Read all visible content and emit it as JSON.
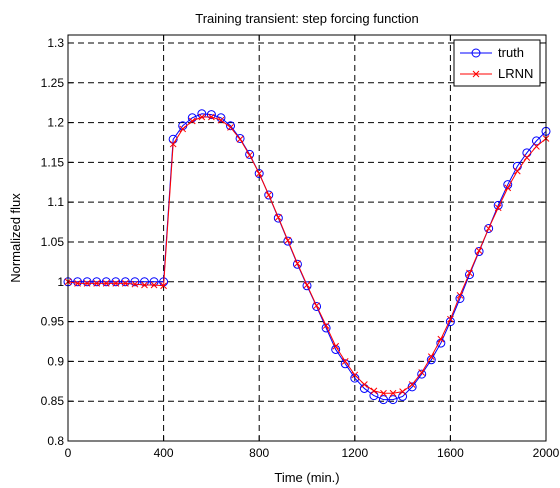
{
  "chart_data": {
    "type": "line",
    "title": "Training transient: step forcing function",
    "xlabel": "Time (min.)",
    "ylabel": "Normalized flux",
    "xlim": [
      0,
      2000
    ],
    "ylim": [
      0.8,
      1.31
    ],
    "xticks": [
      0,
      400,
      800,
      1200,
      1600,
      2000
    ],
    "yticks": [
      0.8,
      0.85,
      0.9,
      0.95,
      1,
      1.05,
      1.1,
      1.15,
      1.2,
      1.25,
      1.3
    ],
    "xtick_labels": [
      "0",
      "400",
      "800",
      "1200",
      "1600",
      "2000"
    ],
    "ytick_labels": [
      "0.8",
      "0.85",
      "0.9",
      "0.95",
      "1",
      "1.05",
      "1.1",
      "1.15",
      "1.2",
      "1.25",
      "1.3"
    ],
    "grid": true,
    "legend_position": "top-right",
    "series": [
      {
        "name": "truth",
        "color": "#0000ff",
        "marker": "circle",
        "x": [
          0,
          40,
          80,
          120,
          160,
          200,
          240,
          280,
          320,
          360,
          400,
          440,
          480,
          520,
          560,
          600,
          640,
          680,
          720,
          760,
          800,
          840,
          880,
          920,
          960,
          1000,
          1040,
          1080,
          1120,
          1160,
          1200,
          1240,
          1280,
          1320,
          1360,
          1400,
          1440,
          1480,
          1520,
          1560,
          1600,
          1640,
          1680,
          1720,
          1760,
          1800,
          1840,
          1880,
          1920,
          1960,
          2000
        ],
        "y": [
          1.0,
          1.0,
          1.0,
          1.0,
          1.0,
          1.0,
          1.0,
          1.0,
          1.0,
          1.0,
          1.0,
          1.179,
          1.196,
          1.206,
          1.211,
          1.21,
          1.206,
          1.196,
          1.18,
          1.16,
          1.136,
          1.109,
          1.08,
          1.051,
          1.022,
          0.995,
          0.969,
          0.942,
          0.915,
          0.897,
          0.879,
          0.866,
          0.857,
          0.852,
          0.852,
          0.856,
          0.868,
          0.884,
          0.902,
          0.923,
          0.95,
          0.979,
          1.009,
          1.038,
          1.067,
          1.096,
          1.122,
          1.145,
          1.162,
          1.177,
          1.189
        ]
      },
      {
        "name": "LRNN",
        "color": "#ff0000",
        "marker": "x",
        "x": [
          0,
          40,
          80,
          120,
          160,
          200,
          240,
          280,
          320,
          360,
          400,
          440,
          480,
          520,
          560,
          600,
          640,
          680,
          720,
          760,
          800,
          840,
          880,
          920,
          960,
          1000,
          1040,
          1080,
          1120,
          1160,
          1200,
          1240,
          1280,
          1320,
          1360,
          1400,
          1440,
          1480,
          1520,
          1560,
          1600,
          1640,
          1680,
          1720,
          1760,
          1800,
          1840,
          1880,
          1920,
          1960,
          2000
        ],
        "y": [
          1.0,
          0.998,
          0.998,
          0.998,
          0.998,
          0.998,
          0.998,
          0.997,
          0.996,
          0.996,
          0.995,
          1.173,
          1.192,
          1.202,
          1.207,
          1.207,
          1.203,
          1.194,
          1.179,
          1.159,
          1.136,
          1.109,
          1.081,
          1.052,
          1.023,
          0.996,
          0.97,
          0.945,
          0.919,
          0.9,
          0.883,
          0.871,
          0.863,
          0.86,
          0.86,
          0.862,
          0.871,
          0.886,
          0.906,
          0.928,
          0.953,
          0.983,
          1.011,
          1.039,
          1.067,
          1.093,
          1.118,
          1.139,
          1.156,
          1.17,
          1.18
        ]
      }
    ]
  }
}
